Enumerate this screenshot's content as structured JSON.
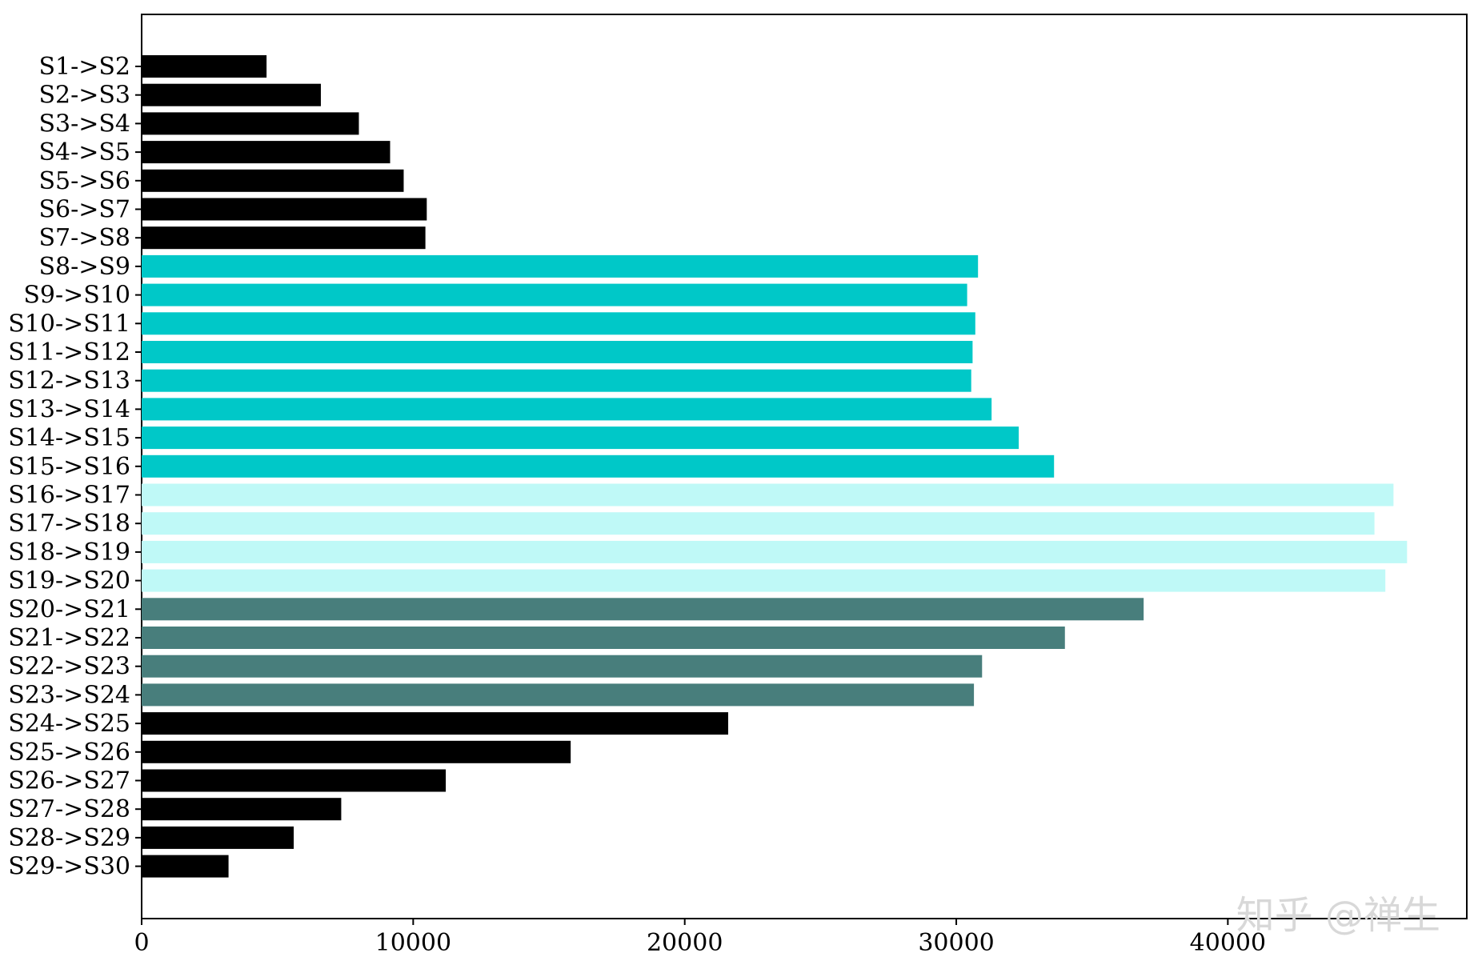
{
  "chart_data": {
    "type": "bar",
    "orientation": "horizontal",
    "title": "",
    "xlabel": "",
    "ylabel": "",
    "xlim": [
      0,
      48800
    ],
    "x_ticks": [
      0,
      10000,
      20000,
      30000,
      40000
    ],
    "grid": false,
    "legend": "none",
    "categories": [
      "S1->S2",
      "S2->S3",
      "S3->S4",
      "S4->S5",
      "S5->S6",
      "S6->S7",
      "S7->S8",
      "S8->S9",
      "S9->S10",
      "S10->S11",
      "S11->S12",
      "S12->S13",
      "S13->S14",
      "S14->S15",
      "S15->S16",
      "S16->S17",
      "S17->S18",
      "S18->S19",
      "S19->S20",
      "S20->S21",
      "S21->S22",
      "S22->S23",
      "S23->S24",
      "S24->S25",
      "S25->S26",
      "S26->S27",
      "S27->S28",
      "S28->S29",
      "S29->S30"
    ],
    "values": [
      4600,
      6600,
      8000,
      9150,
      9650,
      10500,
      10450,
      30800,
      30400,
      30700,
      30600,
      30550,
      31300,
      32300,
      33600,
      46100,
      45400,
      46600,
      45800,
      36900,
      34000,
      30950,
      30650,
      21600,
      15800,
      11200,
      7350,
      5600,
      3200
    ],
    "colors": [
      "#000000",
      "#000000",
      "#000000",
      "#000000",
      "#000000",
      "#000000",
      "#000000",
      "#00c8c8",
      "#00c8c8",
      "#00c8c8",
      "#00c8c8",
      "#00c8c8",
      "#00c8c8",
      "#00c8c8",
      "#00c8c8",
      "#bff9f7",
      "#bff9f7",
      "#bff9f7",
      "#bff9f7",
      "#487e7c",
      "#487e7c",
      "#487e7c",
      "#487e7c",
      "#000000",
      "#000000",
      "#000000",
      "#000000",
      "#000000",
      "#000000"
    ]
  },
  "watermark": "知乎 @禅生"
}
